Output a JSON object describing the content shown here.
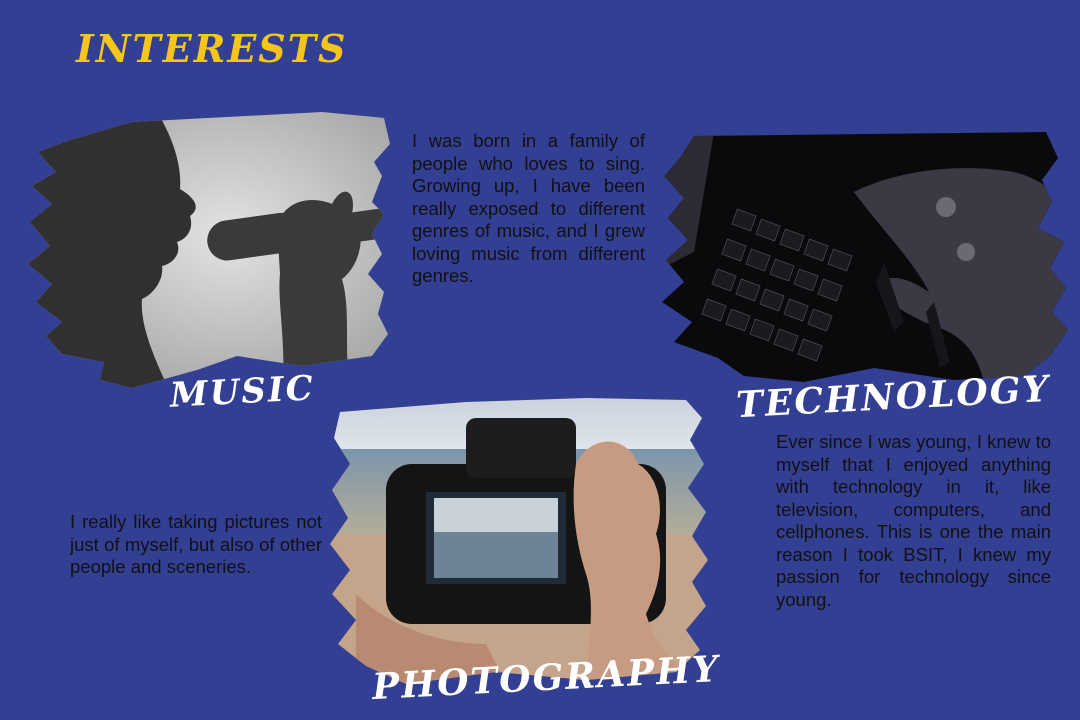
{
  "page": {
    "title": "INTERESTS"
  },
  "sections": {
    "music": {
      "label": "MUSIC",
      "description": "I was born in a family of people who loves to sing. Growing up, I have been really exposed to different genres of music, and I grew loving music from different genres."
    },
    "technology": {
      "label": "TECHNOLOGY",
      "description": "Ever since I was young, I knew to myself that I enjoyed anything with technology in it, like television, computers, and cellphones. This is one the main reason I took BSIT, I knew my passion for technology since young."
    },
    "photography": {
      "label": "PHOTOGRAPHY",
      "description": "I really like taking pictures not just of myself, but also of other people and sceneries."
    }
  },
  "colors": {
    "background": "#333f92",
    "title": "#f5c51b",
    "label": "#ffffff",
    "text": "#111111"
  }
}
